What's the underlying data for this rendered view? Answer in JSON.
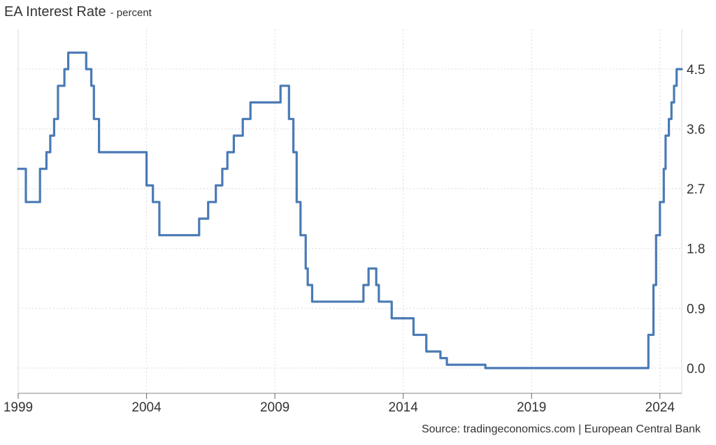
{
  "chart_data": {
    "type": "line",
    "title": "EA Interest Rate",
    "subtitle": "- percent",
    "source": "Source: tradingeconomics.com | European Central Bank",
    "xlabel": "",
    "ylabel": "",
    "xlim": [
      1999.0,
      2024.85
    ],
    "ylim": [
      -0.38,
      5.1
    ],
    "x_ticks": [
      1999,
      2004,
      2009,
      2014,
      2019,
      2024
    ],
    "y_ticks": [
      0.0,
      0.9,
      1.8,
      2.7,
      3.6,
      4.5
    ],
    "y_tick_labels": [
      "0.0",
      "0.9",
      "1.8",
      "2.7",
      "3.6",
      "4.5"
    ],
    "grid": true,
    "line_color": "#4a7ab5",
    "series": [
      {
        "values_step": [
          [
            1999.0,
            3.0
          ],
          [
            1999.3,
            2.5
          ],
          [
            1999.85,
            3.0
          ],
          [
            2000.1,
            3.25
          ],
          [
            2000.25,
            3.5
          ],
          [
            2000.4,
            3.75
          ],
          [
            2000.55,
            4.25
          ],
          [
            2000.8,
            4.5
          ],
          [
            2000.95,
            4.75
          ],
          [
            2001.65,
            4.5
          ],
          [
            2001.85,
            4.25
          ],
          [
            2001.95,
            3.75
          ],
          [
            2002.15,
            3.25
          ],
          [
            2004.0,
            2.75
          ],
          [
            2004.25,
            2.5
          ],
          [
            2004.5,
            2.0
          ],
          [
            2006.05,
            2.25
          ],
          [
            2006.4,
            2.5
          ],
          [
            2006.7,
            2.75
          ],
          [
            2006.95,
            3.0
          ],
          [
            2007.15,
            3.25
          ],
          [
            2007.4,
            3.5
          ],
          [
            2007.75,
            3.75
          ],
          [
            2008.05,
            4.0
          ],
          [
            2008.05,
            4.0
          ],
          [
            2009.22,
            4.25
          ],
          [
            2009.55,
            3.75
          ],
          [
            2009.72,
            3.25
          ],
          [
            2009.85,
            2.5
          ],
          [
            2010.0,
            2.0
          ],
          [
            2010.2,
            1.5
          ],
          [
            2010.28,
            1.25
          ],
          [
            2010.45,
            1.0
          ],
          [
            2012.45,
            1.25
          ],
          [
            2012.65,
            1.5
          ],
          [
            2012.95,
            1.25
          ],
          [
            2013.05,
            1.0
          ],
          [
            2013.55,
            0.75
          ],
          [
            2014.4,
            0.5
          ],
          [
            2014.9,
            0.25
          ],
          [
            2015.45,
            0.15
          ],
          [
            2015.7,
            0.05
          ],
          [
            2017.2,
            0.0
          ],
          [
            2023.55,
            0.5
          ],
          [
            2023.75,
            1.25
          ],
          [
            2023.85,
            2.0
          ],
          [
            2024.0,
            2.5
          ],
          [
            2024.15,
            3.0
          ],
          [
            2024.22,
            3.5
          ],
          [
            2024.35,
            3.75
          ],
          [
            2024.45,
            4.0
          ],
          [
            2024.55,
            4.25
          ],
          [
            2024.65,
            4.5
          ],
          [
            2024.85,
            4.5
          ]
        ]
      }
    ]
  }
}
